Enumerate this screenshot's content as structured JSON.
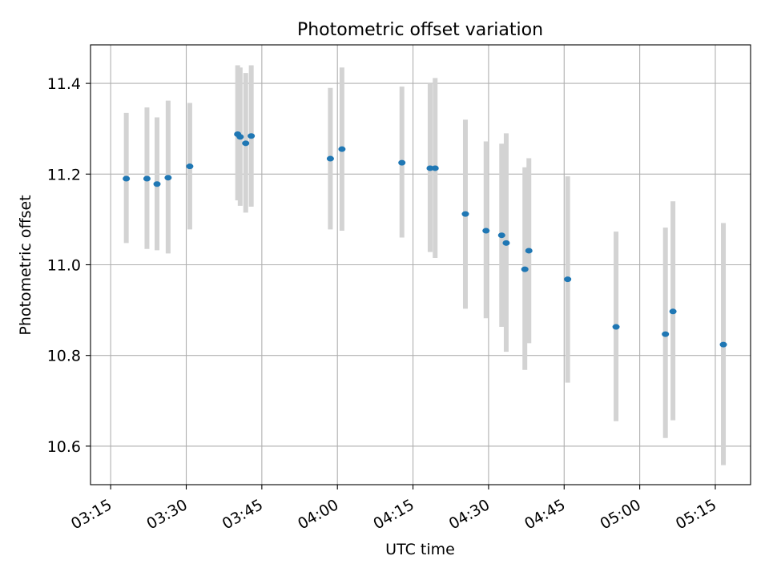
{
  "chart_data": {
    "type": "scatter",
    "title": "Photometric offset variation",
    "xlabel": "UTC time",
    "ylabel": "Photometric offset",
    "xlim": [
      "03:11",
      "05:22"
    ],
    "ylim": [
      10.515,
      11.485
    ],
    "grid": true,
    "x_ticks": [
      "03:15",
      "03:30",
      "03:45",
      "04:00",
      "04:15",
      "04:30",
      "04:45",
      "05:00",
      "05:15"
    ],
    "y_ticks": [
      "10.6",
      "10.8",
      "11.0",
      "11.2",
      "11.4"
    ],
    "points": [
      {
        "x": "03:18:06",
        "y": 11.19,
        "ylow": 11.048,
        "yhigh": 11.335
      },
      {
        "x": "03:22:12",
        "y": 11.19,
        "ylow": 11.035,
        "yhigh": 11.347
      },
      {
        "x": "03:24:12",
        "y": 11.178,
        "ylow": 11.032,
        "yhigh": 11.325
      },
      {
        "x": "03:26:24",
        "y": 11.192,
        "ylow": 11.025,
        "yhigh": 11.362
      },
      {
        "x": "03:30:42",
        "y": 11.217,
        "ylow": 11.078,
        "yhigh": 11.357
      },
      {
        "x": "03:40:12",
        "y": 11.288,
        "ylow": 11.142,
        "yhigh": 11.44
      },
      {
        "x": "03:40:42",
        "y": 11.282,
        "ylow": 11.13,
        "yhigh": 11.435
      },
      {
        "x": "03:41:48",
        "y": 11.268,
        "ylow": 11.115,
        "yhigh": 11.423
      },
      {
        "x": "03:42:54",
        "y": 11.284,
        "ylow": 11.128,
        "yhigh": 11.44
      },
      {
        "x": "03:58:36",
        "y": 11.234,
        "ylow": 11.078,
        "yhigh": 11.39
      },
      {
        "x": "04:00:54",
        "y": 11.255,
        "ylow": 11.075,
        "yhigh": 11.435
      },
      {
        "x": "04:12:48",
        "y": 11.225,
        "ylow": 11.06,
        "yhigh": 11.393
      },
      {
        "x": "04:18:24",
        "y": 11.213,
        "ylow": 11.028,
        "yhigh": 11.4
      },
      {
        "x": "04:19:24",
        "y": 11.213,
        "ylow": 11.015,
        "yhigh": 11.412
      },
      {
        "x": "04:25:24",
        "y": 11.112,
        "ylow": 10.903,
        "yhigh": 11.32
      },
      {
        "x": "04:29:30",
        "y": 11.075,
        "ylow": 10.882,
        "yhigh": 11.272
      },
      {
        "x": "04:32:36",
        "y": 11.065,
        "ylow": 10.863,
        "yhigh": 11.267
      },
      {
        "x": "04:33:30",
        "y": 11.048,
        "ylow": 10.808,
        "yhigh": 11.29
      },
      {
        "x": "04:37:12",
        "y": 10.99,
        "ylow": 10.768,
        "yhigh": 11.215
      },
      {
        "x": "04:38:00",
        "y": 11.031,
        "ylow": 10.827,
        "yhigh": 11.235
      },
      {
        "x": "04:45:42",
        "y": 10.968,
        "ylow": 10.74,
        "yhigh": 11.195
      },
      {
        "x": "04:55:18",
        "y": 10.863,
        "ylow": 10.655,
        "yhigh": 11.073
      },
      {
        "x": "05:05:06",
        "y": 10.847,
        "ylow": 10.618,
        "yhigh": 11.082
      },
      {
        "x": "05:06:36",
        "y": 10.897,
        "ylow": 10.657,
        "yhigh": 11.14
      },
      {
        "x": "05:16:36",
        "y": 10.824,
        "ylow": 10.558,
        "yhigh": 11.092
      }
    ],
    "colors": {
      "marker": "#1f77b4",
      "errorbar": "#d3d3d3",
      "grid": "#b0b0b0",
      "axes": "#000000"
    }
  }
}
